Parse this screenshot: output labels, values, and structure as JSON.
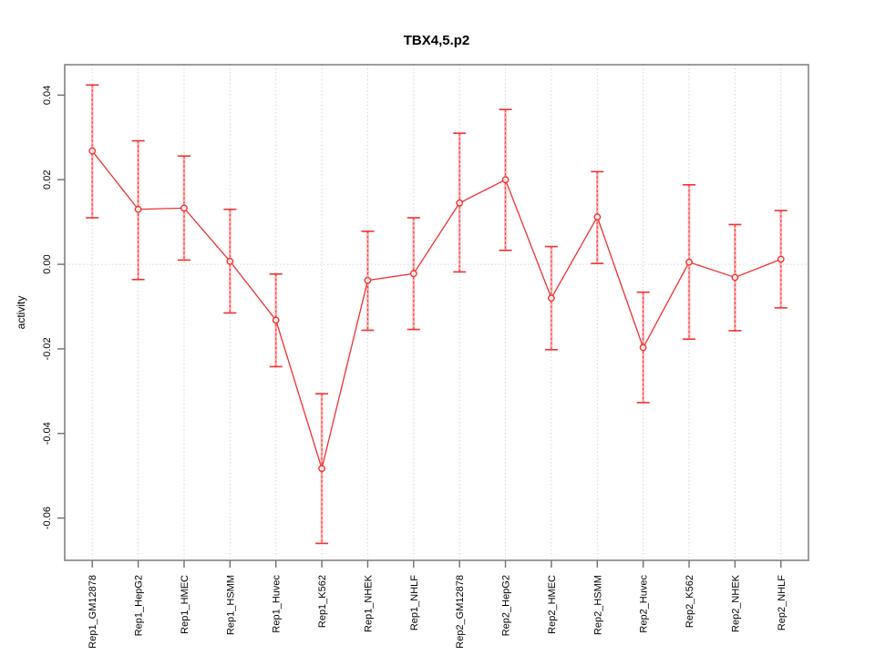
{
  "chart_data": {
    "type": "line",
    "title": "TBX4,5.p2",
    "xlabel": "",
    "ylabel": "activity",
    "categories": [
      "Rep1_GM12878",
      "Rep1_HepG2",
      "Rep1_HMEC",
      "Rep1_HSMM",
      "Rep1_Huvec",
      "Rep1_K562",
      "Rep1_NHEK",
      "Rep1_NHLF",
      "Rep2_GM12878",
      "Rep2_HepG2",
      "Rep2_HMEC",
      "Rep2_HSMM",
      "Rep2_Huvec",
      "Rep2_K562",
      "Rep2_NHEK",
      "Rep2_NHLF"
    ],
    "series": [
      {
        "name": "activity",
        "values": [
          0.0268,
          0.013,
          0.0133,
          0.0007,
          -0.0132,
          -0.0483,
          -0.0038,
          -0.0022,
          0.0145,
          0.02,
          -0.008,
          0.0112,
          -0.0197,
          0.0005,
          -0.0031,
          0.0012
        ],
        "error_upper": [
          0.0424,
          0.0292,
          0.0256,
          0.013,
          -0.0023,
          -0.0306,
          0.0078,
          0.011,
          0.031,
          0.0366,
          0.0042,
          0.0219,
          -0.0066,
          0.0188,
          0.0094,
          0.0127
        ],
        "error_lower": [
          0.011,
          -0.0036,
          0.001,
          -0.0115,
          -0.0242,
          -0.066,
          -0.0156,
          -0.0154,
          -0.0018,
          0.0033,
          -0.0202,
          0.0002,
          -0.0327,
          -0.0177,
          -0.0157,
          -0.0103
        ]
      }
    ],
    "yticks": [
      0.04,
      0.02,
      0.0,
      -0.02,
      -0.04,
      -0.06
    ],
    "ytick_labels": [
      "0.04",
      "0.02",
      "0.00",
      "-0.02",
      "-0.04",
      "-0.06"
    ],
    "ylim": [
      -0.07,
      0.0472
    ],
    "grid": "dotted vertical gridline at each category; dotted horizontal line at y=0",
    "legend": "none",
    "marker": "open-circle",
    "colors": {
      "series": "#f03030",
      "error_bar_fill": "#ffabab",
      "grid": "#d6d6d6",
      "box": "#848484",
      "tick": "#6e6e6e",
      "text": "#000000",
      "background": "#ffffff"
    }
  }
}
